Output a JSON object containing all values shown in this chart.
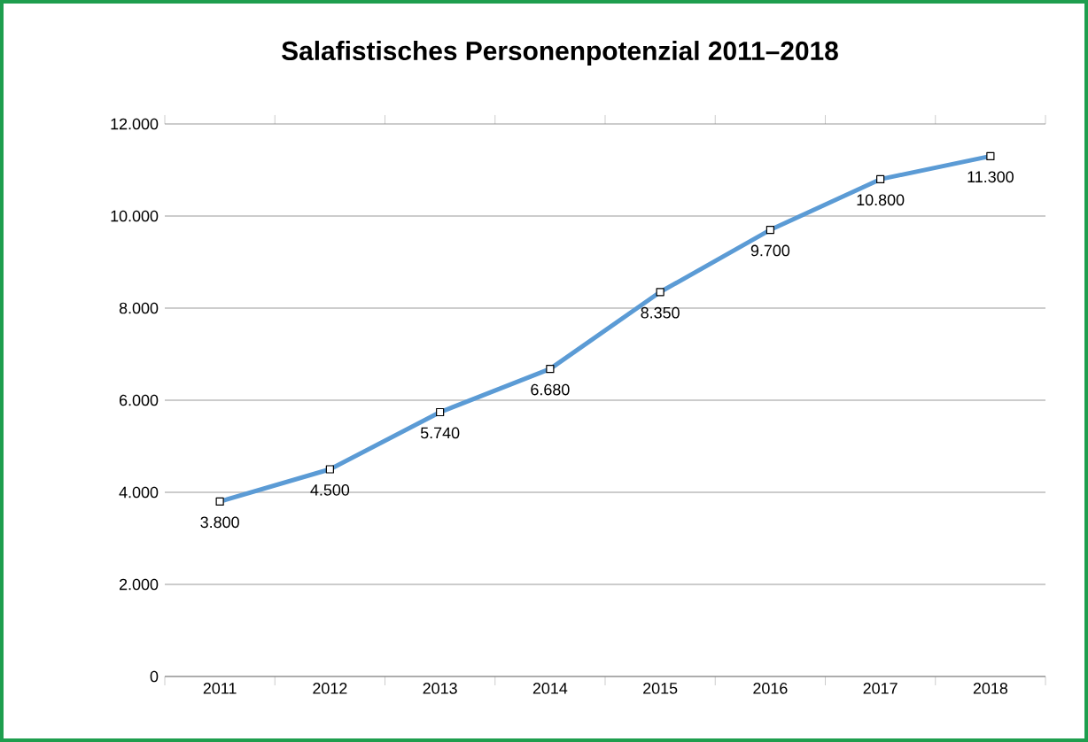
{
  "chart_data": {
    "type": "line",
    "title": "Salafistisches Personenpotenzial 2011–2018",
    "categories": [
      "2011",
      "2012",
      "2013",
      "2014",
      "2015",
      "2016",
      "2017",
      "2018"
    ],
    "series": [
      {
        "color": "#5b9bd5",
        "values": [
          3800,
          4500,
          5740,
          6680,
          8350,
          9700,
          10800,
          11300
        ],
        "value_labels": [
          "3.800",
          "4.500",
          "5.740",
          "6.680",
          "8.350",
          "9.700",
          "10.800",
          "11.300"
        ]
      }
    ],
    "ylim": [
      0,
      12000
    ],
    "yticks": [
      {
        "value": 0,
        "label": "0"
      },
      {
        "value": 2000,
        "label": "2.000"
      },
      {
        "value": 4000,
        "label": "4.000"
      },
      {
        "value": 6000,
        "label": "6.000"
      },
      {
        "value": 8000,
        "label": "8.000"
      },
      {
        "value": 10000,
        "label": "10.000"
      },
      {
        "value": 12000,
        "label": "12.000"
      }
    ],
    "grid": "y",
    "marker": "square"
  }
}
